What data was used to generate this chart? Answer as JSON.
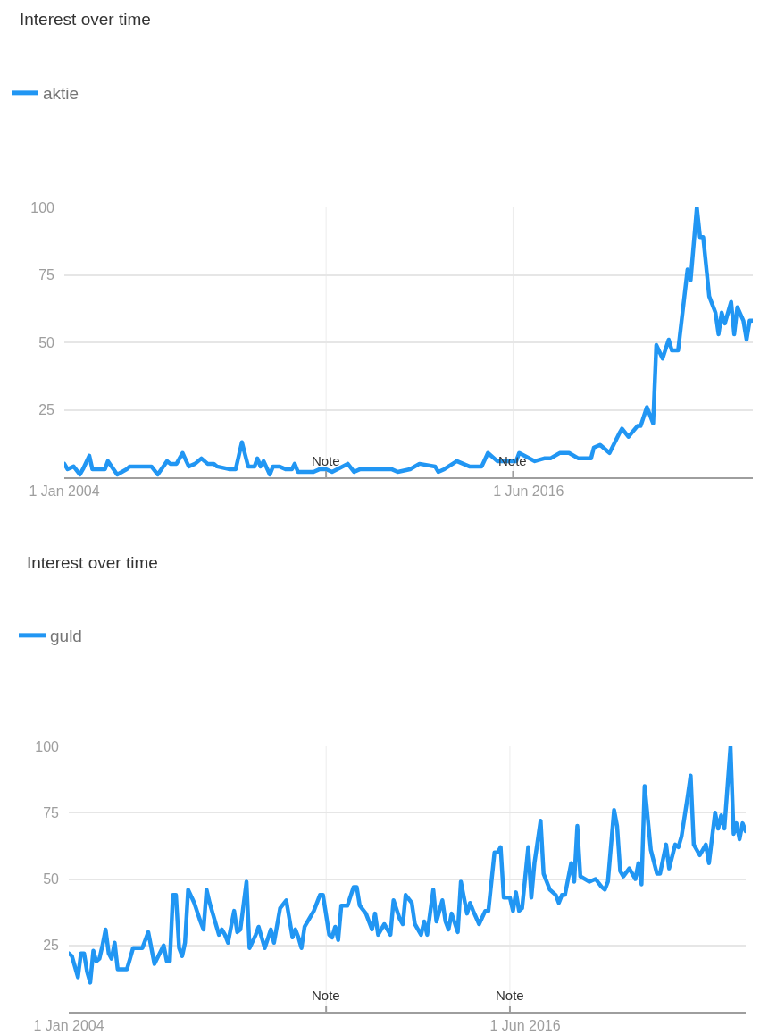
{
  "chart_data": [
    {
      "type": "line",
      "title": "Interest over time",
      "legend": "top left",
      "grid": "y",
      "x": [
        "2004-01",
        "2004-02",
        "2004-04",
        "2004-06",
        "2004-07",
        "2004-09",
        "2004-10",
        "2005-02",
        "2005-03",
        "2005-06",
        "2005-09",
        "2005-10",
        "2006-05",
        "2006-07",
        "2006-10",
        "2006-11",
        "2007-01",
        "2007-03",
        "2007-05",
        "2007-07",
        "2007-09",
        "2007-11",
        "2008-01",
        "2008-02",
        "2008-06",
        "2008-08",
        "2008-10",
        "2008-12",
        "2009-02",
        "2009-03",
        "2009-04",
        "2009-05",
        "2009-07",
        "2009-08",
        "2009-10",
        "2009-12",
        "2010-02",
        "2010-03",
        "2010-04",
        "2010-09",
        "2010-11",
        "2011-01",
        "2011-03",
        "2011-08",
        "2011-10",
        "2011-12",
        "2012-04",
        "2012-10",
        "2012-12",
        "2013-04",
        "2013-07",
        "2013-12",
        "2014-01",
        "2014-03",
        "2014-07",
        "2014-11",
        "2015-03",
        "2015-05",
        "2015-08",
        "2016-02",
        "2016-03",
        "2016-08",
        "2016-11",
        "2017-01",
        "2017-04",
        "2017-07",
        "2017-10",
        "2018-02",
        "2018-03",
        "2018-05",
        "2018-08",
        "2018-11",
        "2018-12",
        "2019-02",
        "2019-05",
        "2019-06",
        "2019-08",
        "2019-10",
        "2019-11",
        "2020-01",
        "2020-03",
        "2020-04",
        "2020-06",
        "2020-09",
        "2020-10",
        "2020-12",
        "2021-01",
        "2021-02",
        "2021-04",
        "2021-06",
        "2021-07",
        "2021-08",
        "2021-09",
        "2021-11",
        "2021-12",
        "2022-01",
        "2022-03",
        "2022-04",
        "2022-05",
        "2022-06"
      ],
      "series": [
        {
          "name": "aktie",
          "color": "#2196f3",
          "values": [
            5,
            3,
            4,
            1,
            3,
            8,
            3,
            3,
            6,
            1,
            3,
            4,
            4,
            1,
            6,
            5,
            5,
            9,
            4,
            5,
            7,
            5,
            5,
            4,
            3,
            3,
            13,
            4,
            4,
            7,
            4,
            6,
            1,
            4,
            4,
            3,
            3,
            5,
            2,
            2,
            3,
            3,
            2,
            5,
            2,
            3,
            3,
            3,
            2,
            3,
            5,
            4,
            2,
            3,
            6,
            4,
            4,
            9,
            6,
            6,
            9,
            6,
            7,
            7,
            9,
            9,
            7,
            7,
            11,
            12,
            9,
            16,
            18,
            15,
            19,
            19,
            26,
            20,
            49,
            44,
            51,
            47,
            47,
            77,
            73,
            100,
            89,
            89,
            67,
            61,
            53,
            61,
            57,
            65,
            53,
            63,
            58,
            51,
            58,
            58
          ]
        }
      ],
      "xlim": [
        "2004-01",
        "2022-06"
      ],
      "xticks": [
        {
          "value": "2004-01",
          "label": "1 Jan 2004"
        },
        {
          "value": "2016-06",
          "label": "1 Jun 2016"
        }
      ],
      "ylim": [
        0,
        100
      ],
      "yticks": [
        25,
        50,
        75,
        100
      ],
      "ref_lines": [
        {
          "axis": "x",
          "value": "2011-01",
          "label": "Note"
        },
        {
          "axis": "x",
          "value": "2016-01",
          "label": "Note"
        }
      ]
    },
    {
      "type": "line",
      "title": "Interest over time",
      "legend": "top left",
      "grid": "y",
      "x": [
        "2004-01",
        "2004-02",
        "2004-04",
        "2004-05",
        "2004-06",
        "2004-07",
        "2004-08",
        "2004-09",
        "2004-10",
        "2004-11",
        "2004-12",
        "2005-01",
        "2005-02",
        "2005-03",
        "2005-04",
        "2005-05",
        "2005-06",
        "2005-08",
        "2005-09",
        "2005-10",
        "2006-01",
        "2006-03",
        "2006-05",
        "2006-08",
        "2006-09",
        "2006-10",
        "2006-11",
        "2006-12",
        "2007-01",
        "2007-02",
        "2007-03",
        "2007-04",
        "2007-06",
        "2007-08",
        "2007-09",
        "2007-10",
        "2007-11",
        "2008-02",
        "2008-03",
        "2008-04",
        "2008-05",
        "2008-07",
        "2008-08",
        "2008-09",
        "2008-11",
        "2008-12",
        "2009-02",
        "2009-03",
        "2009-05",
        "2009-07",
        "2009-08",
        "2009-10",
        "2009-12",
        "2010-02",
        "2010-03",
        "2010-04",
        "2010-05",
        "2010-06",
        "2010-09",
        "2010-11",
        "2010-12",
        "2011-02",
        "2011-03",
        "2011-04",
        "2011-05",
        "2011-06",
        "2011-08",
        "2011-10",
        "2011-11",
        "2011-12",
        "2012-02",
        "2012-04",
        "2012-05",
        "2012-06",
        "2012-08",
        "2012-10",
        "2012-11",
        "2013-01",
        "2013-02",
        "2013-03",
        "2013-05",
        "2013-06",
        "2013-08",
        "2013-09",
        "2013-10",
        "2013-12",
        "2014-01",
        "2014-03",
        "2014-04",
        "2014-05",
        "2014-06",
        "2014-08",
        "2014-09",
        "2014-11",
        "2014-12",
        "2015-01",
        "2015-03",
        "2015-05",
        "2015-06",
        "2015-08",
        "2015-09",
        "2015-10",
        "2015-11",
        "2016-01",
        "2016-02",
        "2016-03",
        "2016-04",
        "2016-05",
        "2016-07",
        "2016-08",
        "2016-09",
        "2016-11",
        "2016-12",
        "2017-02",
        "2017-04",
        "2017-05",
        "2017-06",
        "2017-07",
        "2017-09",
        "2017-10",
        "2017-11",
        "2017-12",
        "2018-03",
        "2018-05",
        "2018-07",
        "2018-08",
        "2018-09",
        "2018-11",
        "2018-12",
        "2019-01",
        "2019-02",
        "2019-04",
        "2019-06",
        "2019-07",
        "2019-08",
        "2019-09",
        "2019-11",
        "2020-01",
        "2020-02",
        "2020-04",
        "2020-05",
        "2020-07",
        "2020-08",
        "2020-09",
        "2020-11",
        "2020-12",
        "2021-01",
        "2021-03",
        "2021-05",
        "2021-06",
        "2021-08",
        "2021-09",
        "2021-10",
        "2021-11",
        "2022-01",
        "2022-02",
        "2022-03",
        "2022-04",
        "2022-05",
        "2022-06"
      ],
      "series": [
        {
          "name": "guld",
          "color": "#2196f3",
          "values": [
            22,
            21,
            13,
            22,
            22,
            15,
            11,
            23,
            19,
            20,
            25,
            31,
            22,
            20,
            26,
            16,
            16,
            16,
            20,
            24,
            24,
            30,
            18,
            25,
            19,
            19,
            44,
            44,
            24,
            21,
            26,
            46,
            41,
            34,
            31,
            46,
            41,
            29,
            31,
            29,
            26,
            38,
            30,
            31,
            49,
            24,
            29,
            32,
            24,
            31,
            26,
            39,
            42,
            28,
            31,
            28,
            24,
            32,
            38,
            44,
            44,
            29,
            28,
            32,
            27,
            40,
            40,
            47,
            47,
            40,
            37,
            31,
            37,
            29,
            33,
            29,
            42,
            35,
            33,
            44,
            41,
            33,
            29,
            34,
            29,
            46,
            34,
            42,
            34,
            31,
            37,
            30,
            49,
            37,
            41,
            38,
            33,
            38,
            38,
            60,
            60,
            62,
            43,
            43,
            38,
            45,
            38,
            39,
            62,
            43,
            56,
            72,
            52,
            46,
            44,
            41,
            44,
            44,
            56,
            49,
            70,
            51,
            49,
            50,
            47,
            46,
            49,
            76,
            70,
            53,
            51,
            54,
            50,
            56,
            48,
            85,
            61,
            52,
            52,
            63,
            54,
            63,
            62,
            66,
            81,
            89,
            63,
            59,
            63,
            56,
            75,
            69,
            74,
            69,
            100,
            67,
            71,
            65,
            71,
            68
          ]
        }
      ],
      "xlim": [
        "2004-01",
        "2022-06"
      ],
      "xticks": [
        {
          "value": "2004-01",
          "label": "1 Jan 2004"
        },
        {
          "value": "2016-06",
          "label": "1 Jun 2016"
        }
      ],
      "ylim": [
        0,
        100
      ],
      "yticks": [
        25,
        50,
        75,
        100
      ],
      "ref_lines": [
        {
          "axis": "x",
          "value": "2011-01",
          "label": "Note"
        },
        {
          "axis": "x",
          "value": "2016-01",
          "label": "Note"
        }
      ]
    }
  ]
}
